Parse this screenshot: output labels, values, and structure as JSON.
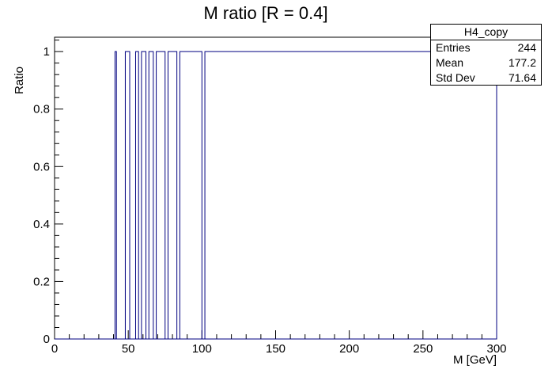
{
  "chart_data": {
    "type": "histogram",
    "title": "M ratio [R = 0.4]",
    "xlabel": "M [GeV]",
    "ylabel": "Ratio",
    "xlim": [
      0,
      300
    ],
    "ylim": [
      0,
      1.05
    ],
    "x_ticks": [
      "0",
      "50",
      "100",
      "150",
      "200",
      "250",
      "300"
    ],
    "y_ticks": [
      "0",
      "0.2",
      "0.4",
      "0.6",
      "0.8",
      "1"
    ],
    "line_color": "#000080",
    "bins": [
      {
        "x0": 41,
        "x1": 42,
        "value": 1
      },
      {
        "x0": 48,
        "x1": 51,
        "value": 1
      },
      {
        "x0": 55,
        "x1": 57,
        "value": 1
      },
      {
        "x0": 59,
        "x1": 62,
        "value": 1
      },
      {
        "x0": 64,
        "x1": 67,
        "value": 1
      },
      {
        "x0": 69,
        "x1": 75,
        "value": 1
      },
      {
        "x0": 77,
        "x1": 83,
        "value": 1
      },
      {
        "x0": 85,
        "x1": 100,
        "value": 1
      },
      {
        "x0": 102,
        "x1": 300,
        "value": 1
      }
    ]
  },
  "stats": {
    "name": "H4_copy",
    "entries_label": "Entries",
    "entries_value": "244",
    "mean_label": "Mean",
    "mean_value": "177.2",
    "std_label": "Std Dev",
    "std_value": "71.64"
  }
}
